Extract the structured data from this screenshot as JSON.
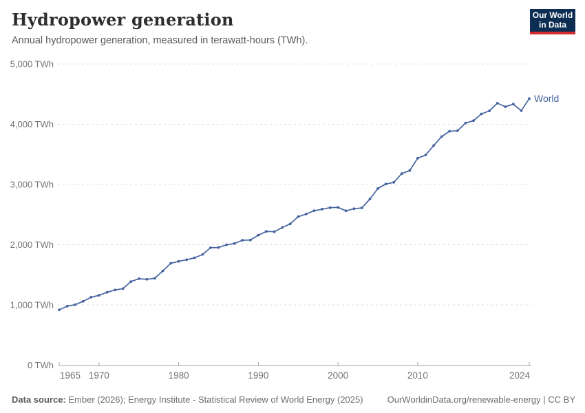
{
  "header": {
    "title": "Hydropower generation",
    "subtitle": "Annual hydropower generation, measured in terawatt-hours (TWh).",
    "logo": {
      "line1": "Our World",
      "line2": "in Data"
    }
  },
  "footer": {
    "source_label": "Data source:",
    "source_text": " Ember (2026); Energy Institute - Statistical Review of World Energy (2025)",
    "citation": "OurWorldinData.org/renewable-energy",
    "license_suffix": " | CC BY"
  },
  "colors": {
    "line": "#44639f",
    "grid": "#dcdcdc",
    "axis": "#a3a3a3",
    "axis_text": "#737373",
    "logo_bg": "#0d2e52",
    "logo_red": "#d42b2f"
  },
  "chart_data": {
    "type": "line",
    "title": "Hydropower generation",
    "ylabel": "TWh",
    "xlim": [
      1965,
      2024
    ],
    "ylim": [
      0,
      5000
    ],
    "grid": "horizontal dashed",
    "legend_position": "end-of-line label",
    "x_ticks": [
      1965,
      1970,
      1980,
      1990,
      2000,
      2010,
      2024
    ],
    "y_ticks": [
      {
        "value": 0,
        "label": "0 TWh"
      },
      {
        "value": 1000,
        "label": "1,000 TWh"
      },
      {
        "value": 2000,
        "label": "2,000 TWh"
      },
      {
        "value": 3000,
        "label": "3,000 TWh"
      },
      {
        "value": 4000,
        "label": "4,000 TWh"
      },
      {
        "value": 5000,
        "label": "5,000 TWh"
      }
    ],
    "series": [
      {
        "name": "World",
        "x": [
          1965,
          1966,
          1967,
          1968,
          1969,
          1970,
          1971,
          1972,
          1973,
          1974,
          1975,
          1976,
          1977,
          1978,
          1979,
          1980,
          1981,
          1982,
          1983,
          1984,
          1985,
          1986,
          1987,
          1988,
          1989,
          1990,
          1991,
          1992,
          1993,
          1994,
          1995,
          1996,
          1997,
          1998,
          1999,
          2000,
          2001,
          2002,
          2003,
          2004,
          2005,
          2006,
          2007,
          2008,
          2009,
          2010,
          2011,
          2012,
          2013,
          2014,
          2015,
          2016,
          2017,
          2018,
          2019,
          2020,
          2021,
          2022,
          2023,
          2024
        ],
        "values": [
          919,
          978,
          1005,
          1059,
          1127,
          1160,
          1209,
          1248,
          1271,
          1388,
          1436,
          1425,
          1442,
          1565,
          1691,
          1723,
          1751,
          1783,
          1839,
          1950,
          1953,
          1998,
          2021,
          2074,
          2078,
          2159,
          2221,
          2215,
          2286,
          2345,
          2465,
          2510,
          2563,
          2590,
          2615,
          2619,
          2562,
          2597,
          2611,
          2759,
          2933,
          3007,
          3035,
          3181,
          3232,
          3437,
          3490,
          3646,
          3794,
          3885,
          3891,
          4020,
          4060,
          4171,
          4222,
          4350,
          4290,
          4334,
          4225,
          4425
        ]
      }
    ]
  }
}
